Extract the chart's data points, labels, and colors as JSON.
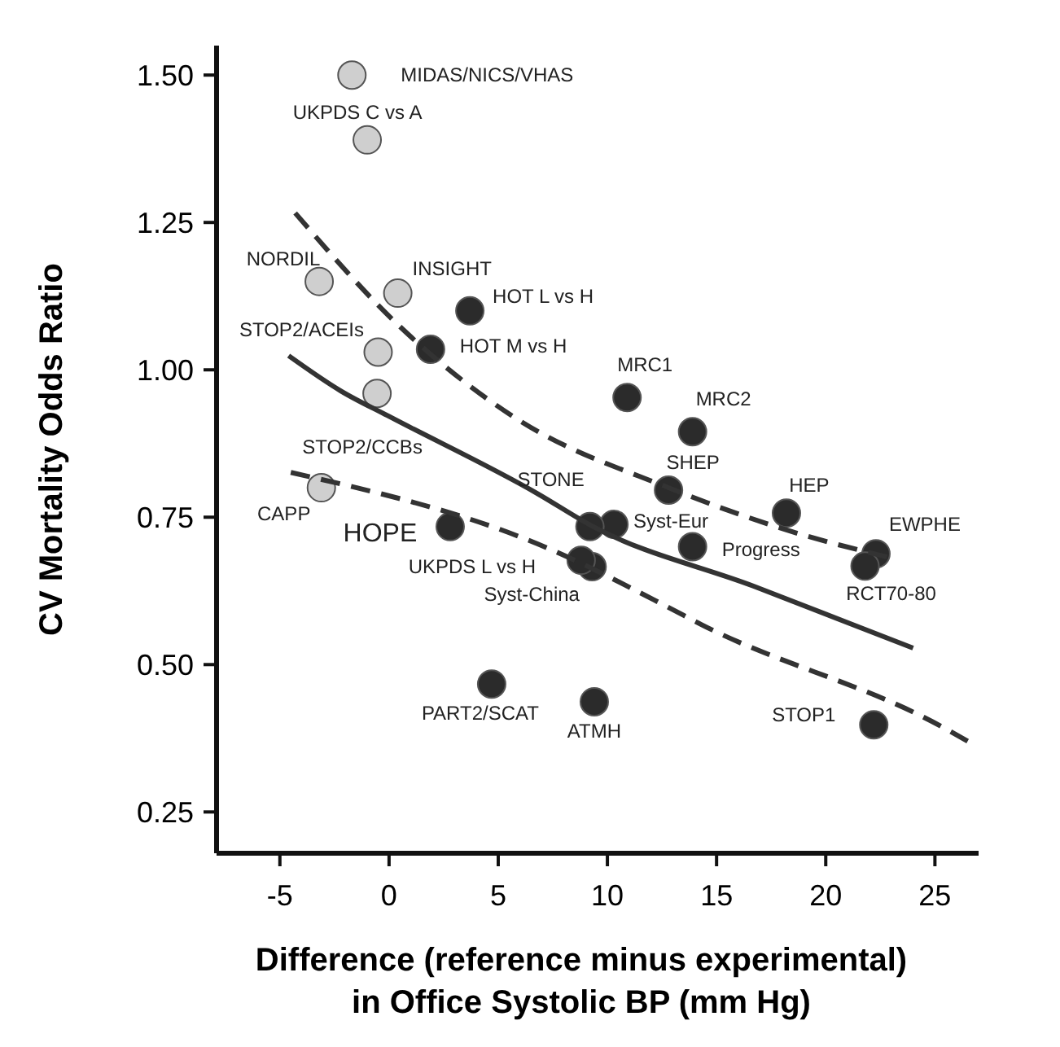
{
  "chart_data": {
    "type": "scatter",
    "xlabel": "Difference (reference minus experimental)\nin Office Systolic BP (mm Hg)",
    "ylabel": "CV Mortality Odds Ratio",
    "xlim": [
      -7.9,
      27
    ],
    "ylim": [
      0.18,
      1.55
    ],
    "xticks": [
      -5,
      0,
      5,
      10,
      15,
      20,
      25
    ],
    "yticks": [
      {
        "value": 0.25,
        "label": "0.25"
      },
      {
        "value": 0.5,
        "label": "0.50"
      },
      {
        "value": 0.75,
        "label": "0.75"
      },
      {
        "value": 1,
        "label": "1.00"
      },
      {
        "value": 1.25,
        "label": "1.25"
      },
      {
        "value": 1.5,
        "label": "1.50"
      }
    ],
    "grid": false,
    "marker": "circle",
    "series": [
      {
        "color": "#cfcfcf",
        "x": [
          -1.7,
          -1.0,
          -3.2,
          0.4,
          -0.5,
          -0.55,
          -3.1
        ],
        "values": [
          1.5,
          1.39,
          1.15,
          1.13,
          1.03,
          0.96,
          0.8
        ]
      },
      {
        "color": "#2b2b2b",
        "x": [
          3.7,
          1.9,
          10.9,
          13.9,
          12.8,
          18.2,
          22.3,
          21.8,
          13.9,
          10.3,
          9.2,
          9.3,
          8.8,
          2.8,
          4.7,
          9.4,
          22.2
        ],
        "values": [
          1.1,
          1.035,
          0.953,
          0.895,
          0.796,
          0.757,
          0.688,
          0.667,
          0.7,
          0.738,
          0.734,
          0.666,
          0.677,
          0.734,
          0.467,
          0.437,
          0.398
        ]
      },
      {
        "type": "line",
        "color": "#333333",
        "line_style": "solid",
        "marker": "none",
        "x": [
          -4.6,
          -2.2,
          0,
          6.8,
          9.3,
          16.7,
          24
        ],
        "values": [
          1.024,
          0.964,
          0.921,
          0.79,
          0.735,
          0.633,
          0.528
        ]
      },
      {
        "type": "line",
        "color": "#333333",
        "line_style": "dashed",
        "marker": "none",
        "x": [
          -4.3,
          0.45,
          5.8,
          12.8,
          18.5,
          23.1
        ],
        "values": [
          1.266,
          1.075,
          0.918,
          0.8,
          0.725,
          0.68
        ]
      },
      {
        "type": "line",
        "color": "#333333",
        "line_style": "dashed",
        "marker": "none",
        "x": [
          -4.5,
          7.3,
          12.8,
          14.3,
          25.4,
          26.5
        ],
        "values": [
          0.826,
          0.697,
          0.597,
          0.568,
          0.393,
          0.37
        ]
      }
    ],
    "annotations": [
      {
        "text": "MIDAS/NICS/VHAS",
        "x": -1.7,
        "y": 1.5
      },
      {
        "text": "UKPDS C vs A",
        "x": -1.0,
        "y": 1.39
      },
      {
        "text": "NORDIL",
        "x": -3.2,
        "y": 1.15
      },
      {
        "text": "INSIGHT",
        "x": 0.4,
        "y": 1.13
      },
      {
        "text": "STOP2/ACEIs",
        "x": -0.5,
        "y": 1.03
      },
      {
        "text": "STOP2/CCBs",
        "x": -0.55,
        "y": 0.96
      },
      {
        "text": "CAPP",
        "x": -3.1,
        "y": 0.8
      },
      {
        "text": "HOT L vs H",
        "x": 3.7,
        "y": 1.1
      },
      {
        "text": "HOT M vs H",
        "x": 1.9,
        "y": 1.035
      },
      {
        "text": "MRC1",
        "x": 10.9,
        "y": 0.953
      },
      {
        "text": "MRC2",
        "x": 13.9,
        "y": 0.895
      },
      {
        "text": "SHEP",
        "x": 12.8,
        "y": 0.796
      },
      {
        "text": "HEP",
        "x": 18.2,
        "y": 0.757
      },
      {
        "text": "EWPHE",
        "x": 22.3,
        "y": 0.688
      },
      {
        "text": "RCT70-80",
        "x": 21.8,
        "y": 0.667
      },
      {
        "text": "Progress",
        "x": 13.9,
        "y": 0.7
      },
      {
        "text": "Syst-Eur",
        "x": 10.3,
        "y": 0.738
      },
      {
        "text": "STONE",
        "x": 9.2,
        "y": 0.734
      },
      {
        "text": "UKPDS L vs H",
        "x": 8.8,
        "y": 0.677
      },
      {
        "text": "Syst-China",
        "x": 9.3,
        "y": 0.666
      },
      {
        "text": "HOPE",
        "x": 2.8,
        "y": 0.734
      },
      {
        "text": "PART2/SCAT",
        "x": 4.7,
        "y": 0.467
      },
      {
        "text": "ATMH",
        "x": 9.4,
        "y": 0.437
      },
      {
        "text": "STOP1",
        "x": 22.2,
        "y": 0.398
      }
    ]
  }
}
